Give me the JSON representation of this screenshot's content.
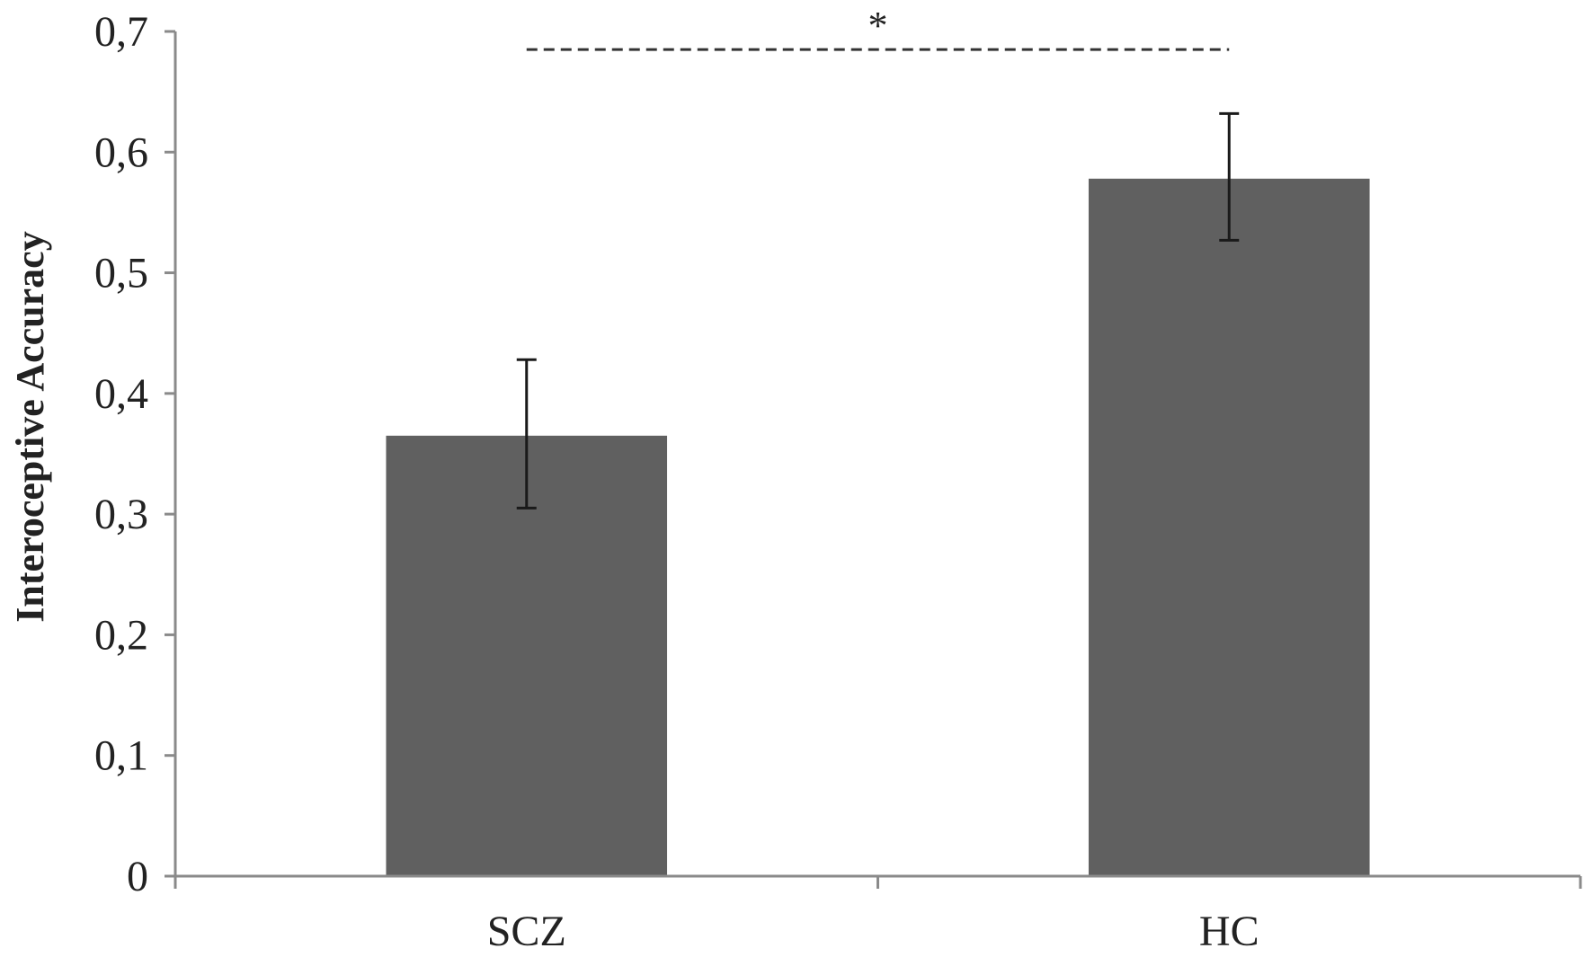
{
  "chart_data": {
    "type": "bar",
    "categories": [
      "SCZ",
      "HC"
    ],
    "values": [
      0.365,
      0.578
    ],
    "error": [
      {
        "low": 0.305,
        "high": 0.428
      },
      {
        "low": 0.527,
        "high": 0.632
      }
    ],
    "ylabel": "Interoceptive Accuracy",
    "xlabel": "",
    "ylim": [
      0,
      0.7
    ],
    "yticks": [
      "0",
      "0,1",
      "0,2",
      "0,3",
      "0,4",
      "0,5",
      "0,6",
      "0,7"
    ],
    "grid": false,
    "significance": {
      "between": [
        "SCZ",
        "HC"
      ],
      "label": "*",
      "level": 0.685
    },
    "colors": {
      "bar": "#606060",
      "axis": "#8a8a8a",
      "error": "#1a1a1a",
      "text": "#222222"
    }
  }
}
